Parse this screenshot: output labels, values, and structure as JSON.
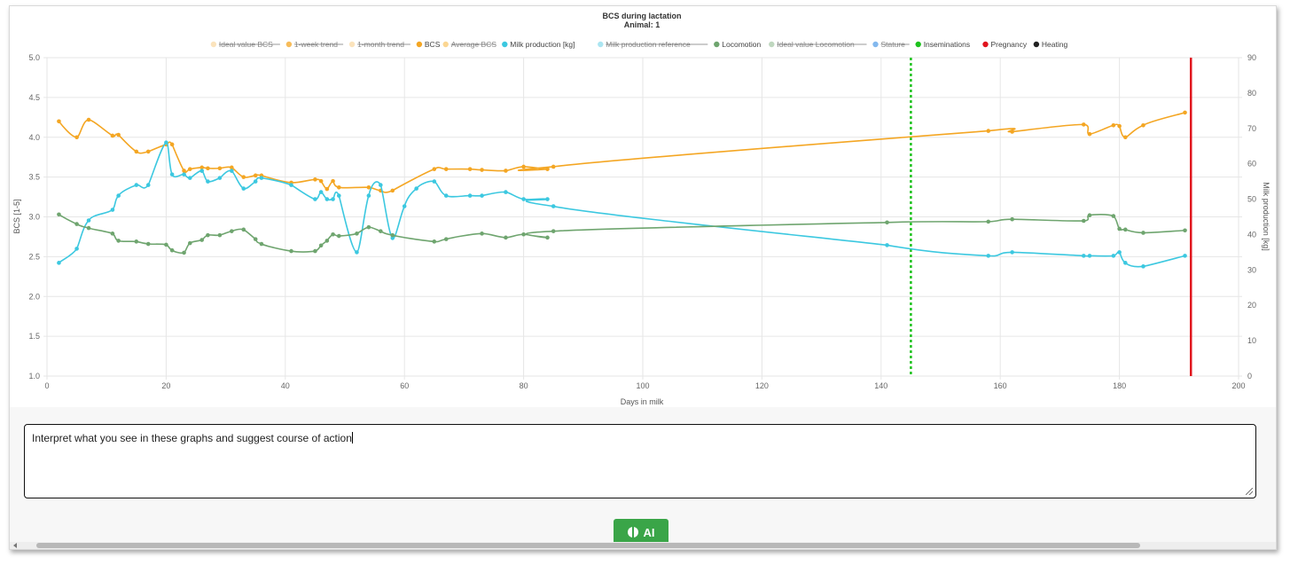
{
  "chart_data": {
    "type": "line",
    "title": "BCS during lactation",
    "subtitle": "Animal: 1",
    "xlabel": "Days in milk",
    "ylabel_left": "BCS [1-5]",
    "ylabel_right": "Milk production [kg]",
    "xlim": [
      0,
      200
    ],
    "ylim_left": [
      1.0,
      5.0
    ],
    "ylim_right": [
      0,
      90
    ],
    "x_ticks": [
      "0",
      "20",
      "40",
      "60",
      "80",
      "100",
      "120",
      "140",
      "160",
      "180",
      "200"
    ],
    "y_left_ticks": [
      "1.0",
      "1.5",
      "2.0",
      "2.5",
      "3.0",
      "3.5",
      "4.0",
      "4.5",
      "5.0"
    ],
    "y_right_ticks": [
      "0",
      "10",
      "20",
      "30",
      "40",
      "50",
      "60",
      "70",
      "80",
      "90"
    ],
    "grid": true,
    "legend_position": "top",
    "legend": [
      {
        "label": "Ideal value BCS",
        "color": "#f9d9a6",
        "hidden": true
      },
      {
        "label": "1-week trend",
        "color": "#f4a623",
        "hidden": true
      },
      {
        "label": "1-month trend",
        "color": "#f9d9a6",
        "hidden": true
      },
      {
        "label": "BCS",
        "color": "#f4a623",
        "hidden": false
      },
      {
        "label": "Average BCS",
        "color": "#f9c86e",
        "hidden": true
      },
      {
        "label": "Milk production [kg]",
        "color": "#3cc8e0",
        "hidden": false
      },
      {
        "label": "Milk production reference",
        "color": "#8fdcec",
        "hidden": true
      },
      {
        "label": "Locomotion",
        "color": "#6fa56f",
        "hidden": false
      },
      {
        "label": "Ideal value Locomotion",
        "color": "#a9c9a9",
        "hidden": true
      },
      {
        "label": "Stature",
        "color": "#5aa0e8",
        "hidden": true
      },
      {
        "label": "Inseminations",
        "color": "#1ec21e",
        "hidden": false
      },
      {
        "label": "Pregnancy",
        "color": "#e0141e",
        "hidden": false
      },
      {
        "label": "Heating",
        "color": "#222222",
        "hidden": false
      }
    ],
    "series": [
      {
        "name": "BCS",
        "axis": "left",
        "color": "#f4a623",
        "points": [
          [
            2,
            4.2
          ],
          [
            5,
            4.0
          ],
          [
            7,
            4.22
          ],
          [
            11,
            4.02
          ],
          [
            12,
            4.03
          ],
          [
            15,
            3.82
          ],
          [
            17,
            3.82
          ],
          [
            20,
            3.91
          ],
          [
            21,
            3.91
          ],
          [
            23,
            3.58
          ],
          [
            24,
            3.6
          ],
          [
            26,
            3.62
          ],
          [
            27,
            3.61
          ],
          [
            29,
            3.61
          ],
          [
            31,
            3.62
          ],
          [
            33,
            3.5
          ],
          [
            35,
            3.52
          ],
          [
            36,
            3.52
          ],
          [
            41,
            3.43
          ],
          [
            45,
            3.47
          ],
          [
            46,
            3.45
          ],
          [
            47,
            3.35
          ],
          [
            48,
            3.45
          ],
          [
            49,
            3.37
          ],
          [
            54,
            3.37
          ],
          [
            56,
            3.33
          ],
          [
            58,
            3.33
          ],
          [
            65,
            3.6
          ],
          [
            67,
            3.6
          ],
          [
            71,
            3.6
          ],
          [
            73,
            3.59
          ],
          [
            77,
            3.58
          ],
          [
            80,
            3.63
          ],
          [
            84,
            3.6
          ],
          [
            85,
            3.63
          ],
          [
            158,
            4.08
          ],
          [
            162,
            4.07
          ],
          [
            174,
            4.16
          ],
          [
            175,
            4.04
          ],
          [
            179,
            4.15
          ],
          [
            180,
            4.14
          ],
          [
            181,
            4.0
          ],
          [
            184,
            4.15
          ],
          [
            191,
            4.31
          ]
        ]
      },
      {
        "name": "Milk production [kg]",
        "axis": "right",
        "color": "#3cc8e0",
        "points": [
          [
            2,
            32
          ],
          [
            5,
            36
          ],
          [
            7,
            44
          ],
          [
            11,
            47
          ],
          [
            12,
            51
          ],
          [
            15,
            54
          ],
          [
            17,
            54
          ],
          [
            20,
            66
          ],
          [
            21,
            57
          ],
          [
            23,
            57
          ],
          [
            24,
            56
          ],
          [
            26,
            58
          ],
          [
            27,
            55
          ],
          [
            29,
            56
          ],
          [
            31,
            58
          ],
          [
            33,
            53
          ],
          [
            35,
            55
          ],
          [
            36,
            56
          ],
          [
            41,
            54
          ],
          [
            45,
            50
          ],
          [
            46,
            52
          ],
          [
            47,
            50
          ],
          [
            48,
            50
          ],
          [
            49,
            51
          ],
          [
            52,
            35
          ],
          [
            54,
            51
          ],
          [
            56,
            54
          ],
          [
            58,
            39
          ],
          [
            60,
            48
          ],
          [
            62,
            53
          ],
          [
            65,
            55
          ],
          [
            67,
            51
          ],
          [
            71,
            51
          ],
          [
            73,
            51
          ],
          [
            77,
            52
          ],
          [
            80,
            50
          ],
          [
            84,
            50
          ],
          [
            85,
            48
          ],
          [
            141,
            37
          ],
          [
            158,
            34
          ],
          [
            162,
            35
          ],
          [
            174,
            34
          ],
          [
            175,
            34
          ],
          [
            179,
            34
          ],
          [
            180,
            35
          ],
          [
            181,
            32
          ],
          [
            184,
            31
          ],
          [
            191,
            34
          ]
        ]
      },
      {
        "name": "Locomotion",
        "axis": "left",
        "color": "#6fa56f",
        "points": [
          [
            2,
            3.03
          ],
          [
            5,
            2.91
          ],
          [
            7,
            2.86
          ],
          [
            11,
            2.79
          ],
          [
            12,
            2.7
          ],
          [
            15,
            2.69
          ],
          [
            17,
            2.66
          ],
          [
            20,
            2.65
          ],
          [
            21,
            2.58
          ],
          [
            23,
            2.55
          ],
          [
            24,
            2.67
          ],
          [
            26,
            2.71
          ],
          [
            27,
            2.77
          ],
          [
            29,
            2.77
          ],
          [
            31,
            2.82
          ],
          [
            33,
            2.84
          ],
          [
            35,
            2.72
          ],
          [
            36,
            2.66
          ],
          [
            41,
            2.57
          ],
          [
            45,
            2.57
          ],
          [
            46,
            2.64
          ],
          [
            47,
            2.7
          ],
          [
            48,
            2.78
          ],
          [
            49,
            2.76
          ],
          [
            52,
            2.79
          ],
          [
            54,
            2.87
          ],
          [
            56,
            2.82
          ],
          [
            58,
            2.77
          ],
          [
            65,
            2.69
          ],
          [
            67,
            2.72
          ],
          [
            73,
            2.79
          ],
          [
            77,
            2.74
          ],
          [
            80,
            2.78
          ],
          [
            84,
            2.74
          ],
          [
            85,
            2.82
          ],
          [
            141,
            2.93
          ],
          [
            158,
            2.94
          ],
          [
            162,
            2.97
          ],
          [
            174,
            2.95
          ],
          [
            175,
            3.02
          ],
          [
            179,
            3.01
          ],
          [
            180,
            2.85
          ],
          [
            181,
            2.84
          ],
          [
            184,
            2.8
          ],
          [
            191,
            2.83
          ]
        ]
      }
    ],
    "vertical_markers": [
      {
        "name": "Inseminations",
        "x": 145,
        "color": "#1ec21e",
        "style": "dotted"
      },
      {
        "name": "Pregnancy",
        "x": 192,
        "color": "#e0141e",
        "style": "solid"
      }
    ]
  },
  "prompt": {
    "text": "Interpret what you see in these graphs and suggest course of action"
  },
  "ai_button": {
    "label": "AI",
    "icon": "brain-icon",
    "color": "#3aa548"
  }
}
